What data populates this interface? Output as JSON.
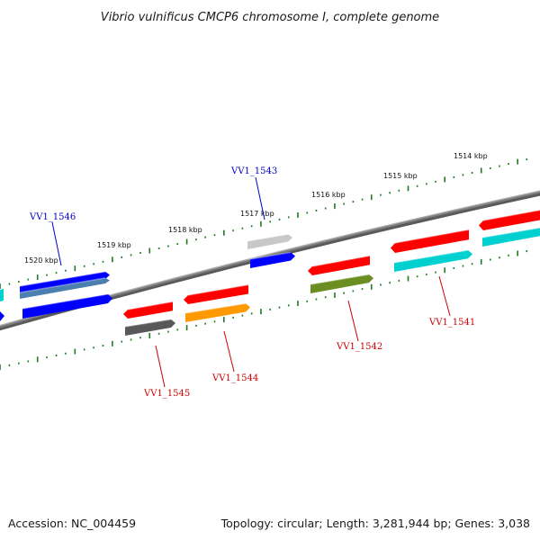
{
  "title": "Vibrio vulnificus CMCP6 chromosome I, complete genome",
  "footer": {
    "accession": "Accession: NC_004459",
    "summary": "Topology: circular; Length: 3,281,944 bp; Genes: 3,038"
  },
  "scale_labels": [
    "1520 kbp",
    "1519 kbp",
    "1518 kbp",
    "1517 kbp",
    "1516 kbp",
    "1515 kbp",
    "1514 kbp"
  ],
  "gene_labels": [
    {
      "name": "VV1_1546",
      "color": "#0000cc"
    },
    {
      "name": "VV1_1543",
      "color": "#0000cc"
    },
    {
      "name": "VV1_1545",
      "color": "#cc0000"
    },
    {
      "name": "VV1_1544",
      "color": "#cc0000"
    },
    {
      "name": "VV1_1542",
      "color": "#cc0000"
    },
    {
      "name": "VV1_1541",
      "color": "#cc0000"
    }
  ],
  "colors": {
    "backbone": "#7f7f7f",
    "ticks": "#1f7a1f",
    "red": "#ff0000",
    "blue": "#0000ff",
    "cyan": "#00d0d0",
    "steel": "#4a7fb0",
    "orange": "#ff9900",
    "olive": "#6b8e23",
    "darkgray": "#595959",
    "lightgray": "#c8c8c8"
  }
}
